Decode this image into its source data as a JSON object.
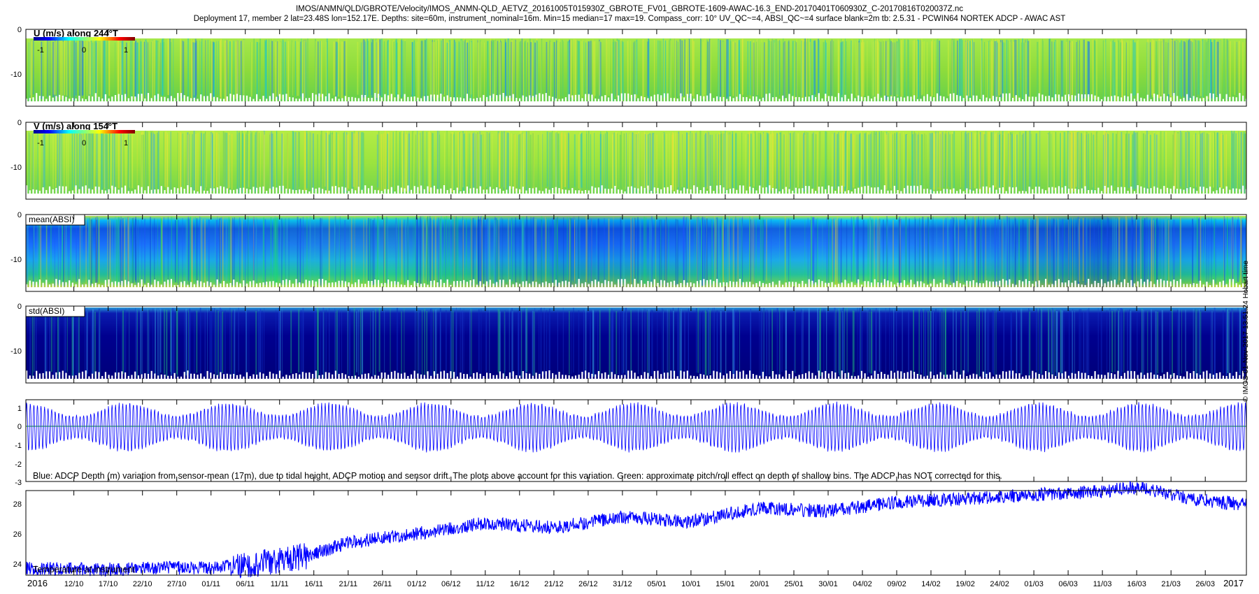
{
  "header": {
    "line1": "IMOS/ANMN/QLD/GBROTE/Velocity/IMOS_ANMN-QLD_AETVZ_20161005T015930Z_GBROTE_FV01_GBROTE-1609-AWAC-16.3_END-20170401T060930Z_C-20170816T020037Z.nc",
    "line2": "Deployment 17, member 2 lat=23.48S lon=152.17E. Depths: site=60m, instrument_nominal=16m. Min=15 median=17 max=19. Compass_corr: 10° UV_QC~=4, ABSI_QC~=4 surface blank=2m tb: 2.5.31 - PCWIN64 NORTEK ADCP - AWAC AST"
  },
  "side_text": "© IMOS 01-Nov-2017 13:51:24 Hobart time",
  "colors": {
    "line_series": "#0000ff",
    "zero_line": "#00aa00",
    "colormap": "jet"
  },
  "chart_data": [
    {
      "type": "heatmap",
      "label": "U (m/s) along 244°T",
      "colorbar_ticks": [
        "-1",
        "0",
        "1"
      ],
      "colorbar_range": [
        -1.2,
        1.2
      ],
      "y_ticks": [
        "0",
        "-10"
      ],
      "y_range": [
        -18,
        0
      ],
      "approx_value_range": [
        -0.4,
        0.4
      ]
    },
    {
      "type": "heatmap",
      "label": "V (m/s) along 154°T",
      "colorbar_ticks": [
        "-1",
        "0",
        "1"
      ],
      "colorbar_range": [
        -1.2,
        1.2
      ],
      "y_ticks": [
        "0",
        "-10"
      ],
      "y_range": [
        -18,
        0
      ],
      "approx_value_range": [
        -0.4,
        0.5
      ]
    },
    {
      "type": "heatmap",
      "label": "mean(ABSI)",
      "y_ticks": [
        "0",
        "-10"
      ],
      "y_range": [
        -18,
        0
      ]
    },
    {
      "type": "heatmap",
      "label": "std(ABSI)",
      "y_ticks": [
        "0",
        "-10"
      ],
      "y_range": [
        -18,
        0
      ]
    },
    {
      "type": "line",
      "note": "Blue: ADCP Depth (m) variation from sensor-mean (17m), due to tidal height, ADCP motion and sensor drift. The plots above account for this variation. Green: approximate pitch/roll effect on depth of shallow bins. The ADCP has NOT corrected for this.",
      "y_ticks": [
        "1",
        "0",
        "-1",
        "-2",
        "-3"
      ],
      "y_range": [
        -3,
        1.5
      ],
      "amplitude_envelope_m": [
        0.6,
        1.3
      ],
      "semidiurnal_tide": true
    },
    {
      "type": "line",
      "label": "Temperature at instrument",
      "y_ticks": [
        "28",
        "26",
        "24"
      ],
      "y_range": [
        22.5,
        30
      ],
      "x": [
        "2016-10-05",
        "2016-10-15",
        "2016-10-25",
        "2016-11-05",
        "2016-11-15",
        "2016-11-21",
        "2016-12-01",
        "2016-12-11",
        "2016-12-21",
        "2016-12-31",
        "2017-01-10",
        "2017-01-20",
        "2017-01-30",
        "2017-02-09",
        "2017-02-19",
        "2017-03-01",
        "2017-03-11",
        "2017-03-16",
        "2017-03-24",
        "2017-04-01"
      ],
      "y": [
        24.0,
        23.9,
        24.0,
        24.1,
        24.8,
        25.7,
        26.3,
        27.0,
        26.7,
        27.4,
        27.1,
        28.0,
        27.8,
        28.4,
        28.6,
        28.9,
        29.1,
        29.4,
        28.6,
        28.2
      ]
    }
  ],
  "x_axis": {
    "year_start": "2016",
    "year_end": "2017",
    "tick_labels": [
      "12/10",
      "17/10",
      "22/10",
      "27/10",
      "01/11",
      "06/11",
      "11/11",
      "16/11",
      "21/11",
      "26/11",
      "01/12",
      "06/12",
      "11/12",
      "16/12",
      "21/12",
      "26/12",
      "31/12",
      "05/01",
      "10/01",
      "15/01",
      "20/01",
      "25/01",
      "30/01",
      "04/02",
      "09/02",
      "14/02",
      "19/02",
      "24/02",
      "01/03",
      "06/03",
      "11/03",
      "16/03",
      "21/03",
      "26/03"
    ]
  }
}
